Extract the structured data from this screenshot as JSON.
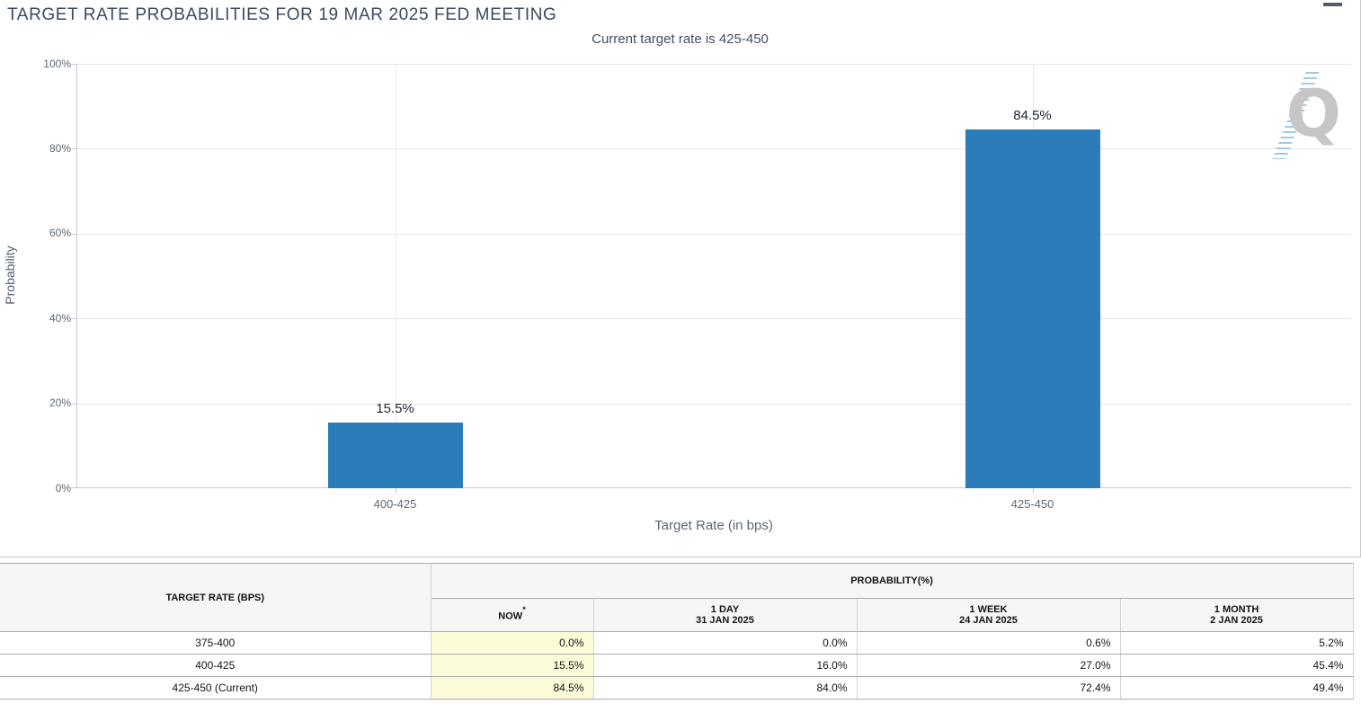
{
  "header": {
    "menu_icon": "hamburger-icon"
  },
  "chart_data": {
    "type": "bar",
    "title": "TARGET RATE PROBABILITIES FOR 19 MAR 2025 FED MEETING",
    "subtitle": "Current target rate is 425-450",
    "categories": [
      "400-425",
      "425-450"
    ],
    "values": [
      15.5,
      84.5
    ],
    "bar_labels": [
      "15.5%",
      "84.5%"
    ],
    "xlabel": "Target Rate (in bps)",
    "ylabel": "Probability",
    "ylim": [
      0,
      100
    ],
    "yticks": [
      "0%",
      "20%",
      "40%",
      "60%",
      "80%",
      "100%"
    ],
    "bar_color": "#2b7cb8",
    "grid": true,
    "legend": false
  },
  "watermark": {
    "letter": "Q"
  },
  "table": {
    "col1_header": "TARGET RATE (BPS)",
    "group_header": "PROBABILITY(%)",
    "sub_headers": [
      {
        "line1": "NOW",
        "sup": "*",
        "line2": ""
      },
      {
        "line1": "1 DAY",
        "line2": "31 JAN 2025"
      },
      {
        "line1": "1 WEEK",
        "line2": "24 JAN 2025"
      },
      {
        "line1": "1 MONTH",
        "line2": "2 JAN 2025"
      }
    ],
    "rows": [
      {
        "rate": "375-400",
        "now": "0.0%",
        "day": "0.0%",
        "week": "0.6%",
        "month": "5.2%"
      },
      {
        "rate": "400-425",
        "now": "15.5%",
        "day": "16.0%",
        "week": "27.0%",
        "month": "45.4%"
      },
      {
        "rate": "425-450 (Current)",
        "now": "84.5%",
        "day": "84.0%",
        "week": "72.4%",
        "month": "49.4%"
      }
    ]
  },
  "colors": {
    "bar": "#2b7cb8",
    "now_column_highlight": "#fbfbd8",
    "title_text": "#3a4a5f",
    "axis_text": "#5d6874",
    "grid_line": "#e6e6e6",
    "table_border": "#ababab",
    "watermark_gray": "#c6c6c6",
    "watermark_blue": "#89bde0"
  }
}
